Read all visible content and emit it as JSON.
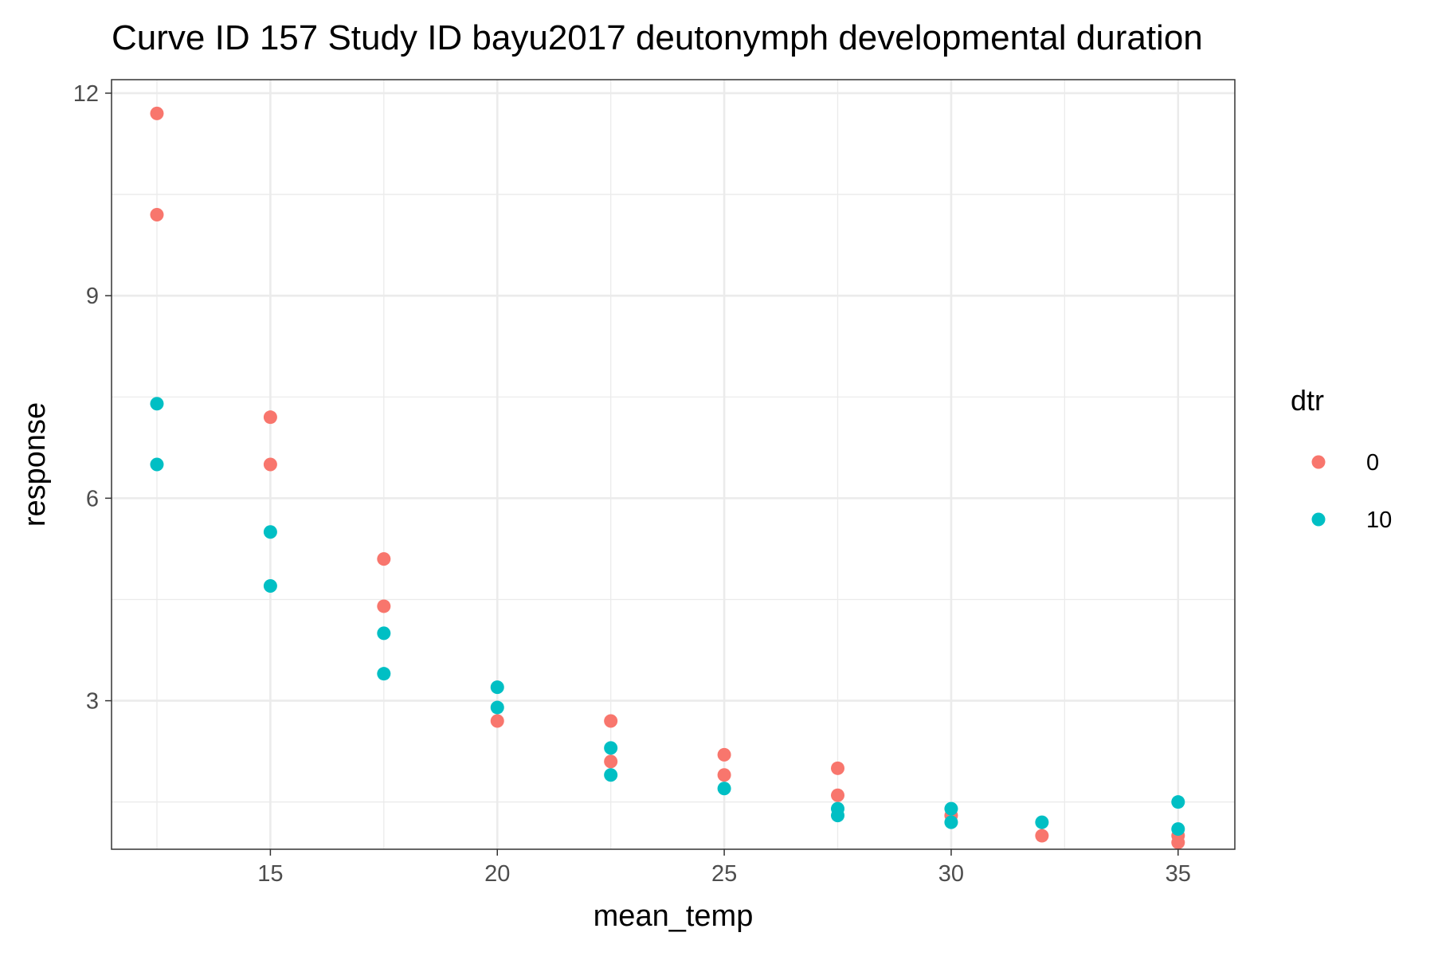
{
  "chart_data": {
    "type": "scatter",
    "title": "Curve ID 157 Study ID bayu2017 deutonymph developmental duration",
    "xlabel": "mean_temp",
    "ylabel": "response",
    "xlim": [
      11.5,
      36.25
    ],
    "ylim": [
      0.8,
      12.2
    ],
    "x_ticks": [
      15,
      20,
      25,
      30,
      35
    ],
    "y_ticks": [
      3,
      6,
      9,
      12
    ],
    "grid": true,
    "legend": {
      "title": "dtr",
      "position": "right"
    },
    "series": [
      {
        "name": "0",
        "color": "#F8766D",
        "points": [
          {
            "x": 12.5,
            "y": 11.7
          },
          {
            "x": 12.5,
            "y": 10.2
          },
          {
            "x": 15,
            "y": 7.2
          },
          {
            "x": 15,
            "y": 6.5
          },
          {
            "x": 17.5,
            "y": 5.1
          },
          {
            "x": 17.5,
            "y": 4.4
          },
          {
            "x": 20,
            "y": 2.7
          },
          {
            "x": 22.5,
            "y": 2.7
          },
          {
            "x": 22.5,
            "y": 2.1
          },
          {
            "x": 25,
            "y": 2.2
          },
          {
            "x": 25,
            "y": 1.9
          },
          {
            "x": 27.5,
            "y": 2.0
          },
          {
            "x": 27.5,
            "y": 1.6
          },
          {
            "x": 30,
            "y": 1.3
          },
          {
            "x": 32,
            "y": 1.0
          },
          {
            "x": 35,
            "y": 1.0
          },
          {
            "x": 35,
            "y": 0.9
          }
        ]
      },
      {
        "name": "10",
        "color": "#00BFC4",
        "points": [
          {
            "x": 12.5,
            "y": 7.4
          },
          {
            "x": 12.5,
            "y": 6.5
          },
          {
            "x": 15,
            "y": 5.5
          },
          {
            "x": 15,
            "y": 4.7
          },
          {
            "x": 17.5,
            "y": 4.0
          },
          {
            "x": 17.5,
            "y": 3.4
          },
          {
            "x": 20,
            "y": 3.2
          },
          {
            "x": 20,
            "y": 2.9
          },
          {
            "x": 22.5,
            "y": 2.3
          },
          {
            "x": 22.5,
            "y": 1.9
          },
          {
            "x": 25,
            "y": 1.7
          },
          {
            "x": 27.5,
            "y": 1.4
          },
          {
            "x": 27.5,
            "y": 1.3
          },
          {
            "x": 30,
            "y": 1.4
          },
          {
            "x": 30,
            "y": 1.2
          },
          {
            "x": 32,
            "y": 1.2
          },
          {
            "x": 35,
            "y": 1.5
          },
          {
            "x": 35,
            "y": 1.1
          }
        ]
      }
    ]
  }
}
